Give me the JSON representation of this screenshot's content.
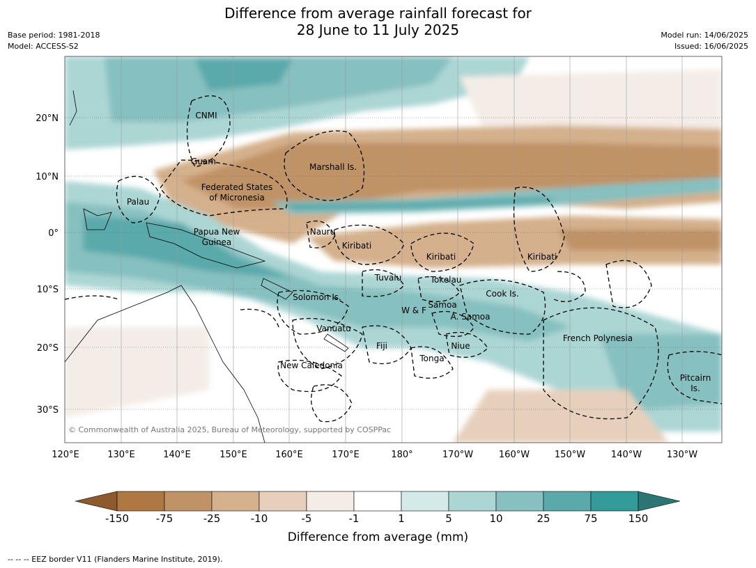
{
  "title_line1": "Difference from average rainfall forecast for",
  "title_line2": "28 June to 11 July 2025",
  "meta_left": [
    "Base period: 1981-2018",
    "Model: ACCESS-S2"
  ],
  "meta_right": [
    "Model run: 14/06/2025",
    "Issued: 16/06/2025"
  ],
  "copyright": "© Commonwealth of Australia 2025, Bureau of Meteorology, supported by COSPPac",
  "lat_labels": [
    "20°N",
    "10°N",
    "0°",
    "10°S",
    "20°S",
    "30°S"
  ],
  "lon_labels": [
    "120°E",
    "130°E",
    "140°E",
    "150°E",
    "160°E",
    "170°E",
    "180°",
    "170°W",
    "160°W",
    "150°W",
    "140°W",
    "130°W"
  ],
  "places": [
    {
      "name": "CNMI"
    },
    {
      "name": "Guam"
    },
    {
      "name": "Marshall Is."
    },
    {
      "name": "Federated States"
    },
    {
      "name": "of Micronesia"
    },
    {
      "name": "Palau"
    },
    {
      "name": "Papua New"
    },
    {
      "name": "Guinea"
    },
    {
      "name": "Nauru"
    },
    {
      "name": "Kiribati"
    },
    {
      "name": "Kiribati"
    },
    {
      "name": "Kiribati"
    },
    {
      "name": "Tuvalu"
    },
    {
      "name": "Tokelau"
    },
    {
      "name": "Cook Is."
    },
    {
      "name": "Solomon Is."
    },
    {
      "name": "Samoa"
    },
    {
      "name": "W & F"
    },
    {
      "name": "A. Samoa"
    },
    {
      "name": "Vanuatu"
    },
    {
      "name": "Fiji"
    },
    {
      "name": "Niue"
    },
    {
      "name": "French Polynesia"
    },
    {
      "name": "Tonga"
    },
    {
      "name": "New Caledonia"
    },
    {
      "name": "Pitcairn"
    },
    {
      "name": "Is."
    }
  ],
  "colorbar": {
    "title": "Difference from average (mm)",
    "ticks": [
      "-150",
      "-75",
      "-25",
      "-10",
      "-5",
      "-1",
      "1",
      "5",
      "10",
      "25",
      "75",
      "150"
    ],
    "colors": [
      "#8f5a2b",
      "#ad7841",
      "#c09366",
      "#d4b08c",
      "#e6d0bc",
      "#f4ece6",
      "#ffffff",
      "#d4eae8",
      "#acd6d4",
      "#86c0c0",
      "#5aa9ab",
      "#339b9a",
      "#2d7575"
    ]
  },
  "footnote": "--  --  -- EEZ border V11 (Flanders Marine Institute, 2019)."
}
